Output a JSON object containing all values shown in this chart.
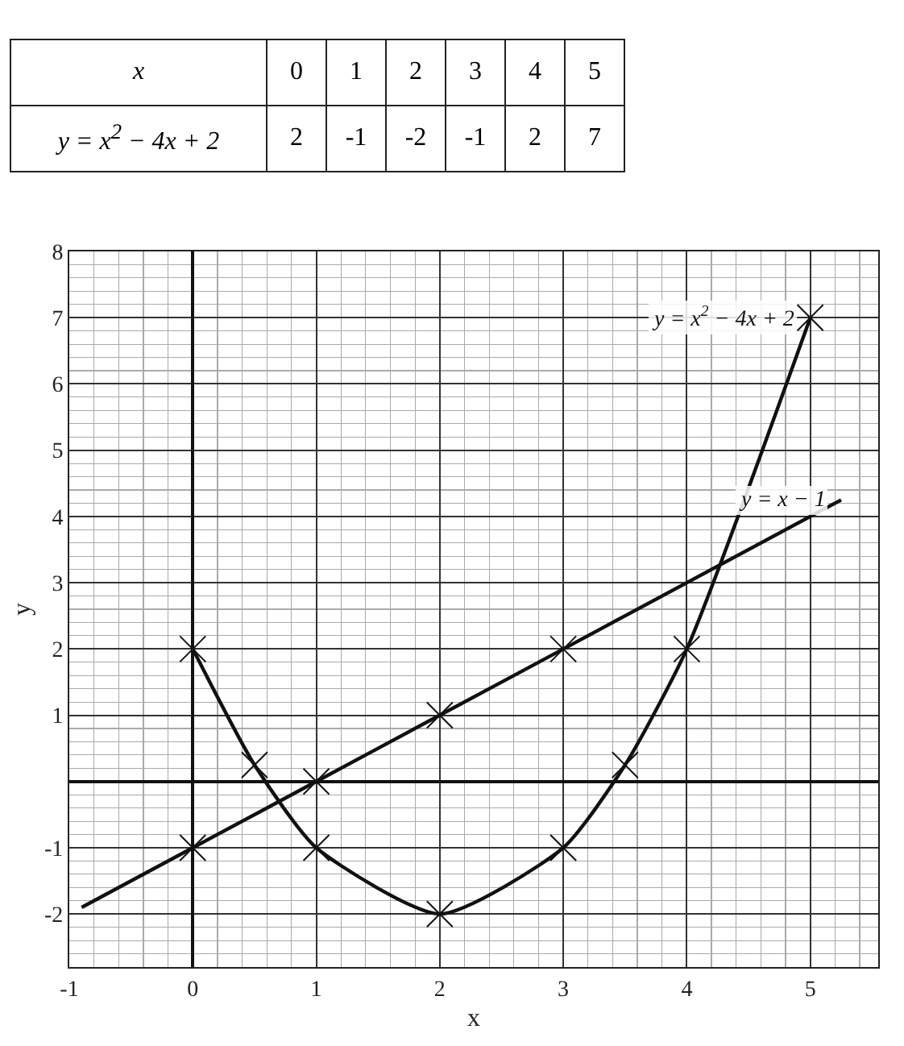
{
  "chart_data": {
    "type": "line",
    "xlabel": "x",
    "ylabel": "y",
    "xlim": [
      -1,
      5.55
    ],
    "xticks": [
      -1,
      0,
      1,
      2,
      3,
      4,
      5
    ],
    "ylim": [
      -2.8,
      8
    ],
    "yticks": [
      -2,
      -1,
      1,
      2,
      3,
      4,
      5,
      6,
      7,
      8
    ],
    "grid": true,
    "marker": "cross",
    "line_style": "solid",
    "series": [
      {
        "color": "#111111",
        "x": [
          0,
          0.5,
          1,
          2,
          3,
          3.5,
          4,
          5
        ],
        "values": [
          2,
          0.25,
          -1,
          -2,
          -1,
          0.25,
          2,
          7
        ]
      },
      {
        "color": "#111111",
        "marker": "none",
        "x": [
          -0.9,
          0,
          1,
          2,
          3,
          5.25
        ],
        "values": [
          -1.9,
          -1,
          0,
          1,
          2,
          4.25
        ]
      },
      {
        "type": "scatter",
        "color": "#111111",
        "x": [
          0,
          1,
          2,
          3
        ],
        "values": [
          -1,
          0,
          1,
          2
        ]
      }
    ],
    "annotations": [
      "x",
      "0",
      "1",
      "2",
      "3",
      "4",
      "5",
      "y = x$^{2}$ − 4x + 2",
      "2",
      "-1",
      "-2",
      "-1",
      "2",
      "7",
      {
        "text": "y = x$^{2}$ − 4x + 2",
        "x": 5,
        "y": 7
      },
      {
        "text": "y = x − 1",
        "x": 5.25,
        "y": 4.25
      }
    ]
  }
}
